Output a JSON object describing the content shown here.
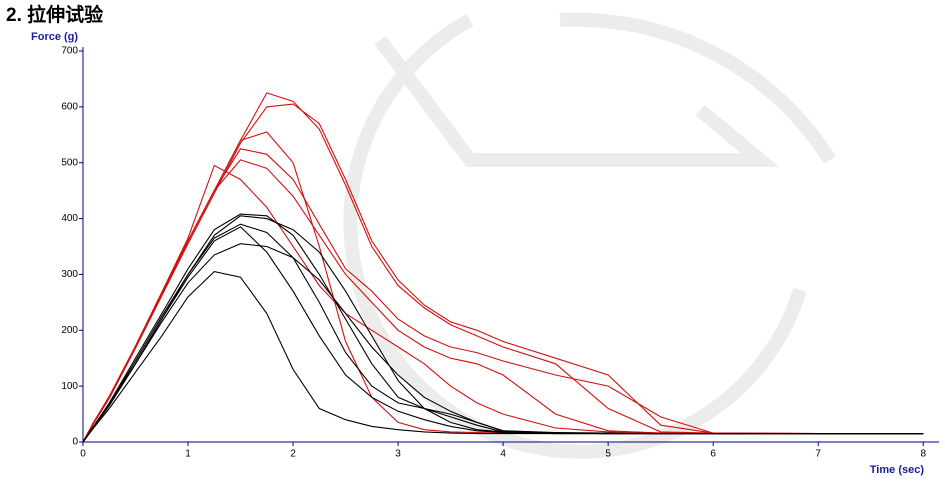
{
  "header": {
    "title": "2. 拉伸试验"
  },
  "chart_data": {
    "type": "line",
    "ylabel": "Force (g)",
    "xlabel": "Time (sec)",
    "x": [
      0,
      0.1,
      0.25,
      0.5,
      0.75,
      1,
      1.25,
      1.5,
      1.75,
      2,
      2.25,
      2.5,
      2.75,
      3,
      3.25,
      3.5,
      3.75,
      4,
      4.5,
      5,
      5.5,
      6,
      7,
      8
    ],
    "xlim": [
      0,
      8.15
    ],
    "ylim": [
      0,
      700
    ],
    "xticks": [
      0,
      1,
      2,
      3,
      4,
      5,
      6,
      7,
      8
    ],
    "yticks": [
      0,
      100,
      200,
      300,
      400,
      500,
      600,
      700
    ],
    "series": [
      {
        "color": "#d01010",
        "values": [
          0,
          35,
          80,
          170,
          265,
          360,
          450,
          540,
          625,
          610,
          560,
          460,
          350,
          280,
          240,
          210,
          190,
          170,
          140,
          60,
          18,
          16,
          15,
          15
        ]
      },
      {
        "color": "#d01010",
        "values": [
          0,
          33,
          78,
          168,
          262,
          355,
          445,
          535,
          600,
          605,
          570,
          470,
          360,
          290,
          245,
          215,
          200,
          180,
          150,
          120,
          30,
          16,
          15,
          15
        ]
      },
      {
        "color": "#d01010",
        "values": [
          0,
          34,
          80,
          170,
          265,
          360,
          450,
          540,
          555,
          500,
          350,
          180,
          80,
          35,
          22,
          18,
          17,
          16,
          15,
          15,
          15,
          15,
          15,
          15
        ]
      },
      {
        "color": "#d01010",
        "values": [
          0,
          34,
          80,
          170,
          265,
          360,
          450,
          525,
          515,
          470,
          390,
          310,
          270,
          220,
          190,
          170,
          160,
          145,
          120,
          100,
          45,
          16,
          15,
          15
        ]
      },
      {
        "color": "#d01010",
        "values": [
          0,
          34,
          80,
          170,
          265,
          360,
          450,
          505,
          490,
          440,
          370,
          300,
          250,
          200,
          170,
          150,
          140,
          120,
          50,
          20,
          16,
          15,
          15,
          15
        ]
      },
      {
        "color": "#d01010",
        "values": [
          0,
          35,
          82,
          172,
          268,
          365,
          495,
          470,
          420,
          350,
          280,
          230,
          200,
          170,
          140,
          100,
          70,
          50,
          25,
          18,
          16,
          15,
          15,
          15
        ]
      },
      {
        "color": "#000000",
        "values": [
          0,
          28,
          70,
          150,
          230,
          310,
          380,
          408,
          405,
          370,
          300,
          220,
          140,
          80,
          60,
          50,
          35,
          20,
          17,
          16,
          15,
          15,
          15,
          15
        ]
      },
      {
        "color": "#000000",
        "values": [
          0,
          28,
          68,
          145,
          225,
          300,
          365,
          390,
          375,
          330,
          250,
          160,
          100,
          70,
          60,
          45,
          30,
          18,
          16,
          15,
          15,
          15,
          15,
          15
        ]
      },
      {
        "color": "#000000",
        "values": [
          0,
          26,
          65,
          140,
          215,
          285,
          335,
          355,
          350,
          330,
          290,
          230,
          170,
          120,
          80,
          55,
          35,
          20,
          16,
          15,
          15,
          15,
          15,
          15
        ]
      },
      {
        "color": "#000000",
        "values": [
          0,
          27,
          66,
          140,
          220,
          295,
          360,
          385,
          340,
          270,
          190,
          120,
          80,
          55,
          40,
          28,
          20,
          17,
          15,
          15,
          15,
          15,
          15,
          15
        ]
      },
      {
        "color": "#000000",
        "values": [
          0,
          25,
          60,
          125,
          190,
          260,
          305,
          295,
          230,
          130,
          60,
          40,
          28,
          22,
          18,
          16,
          15,
          15,
          15,
          15,
          15,
          15,
          15,
          15
        ]
      },
      {
        "color": "#000000",
        "values": [
          0,
          27,
          67,
          140,
          220,
          300,
          370,
          405,
          400,
          380,
          340,
          270,
          190,
          110,
          60,
          35,
          22,
          18,
          16,
          15,
          15,
          15,
          15,
          15
        ]
      }
    ]
  }
}
